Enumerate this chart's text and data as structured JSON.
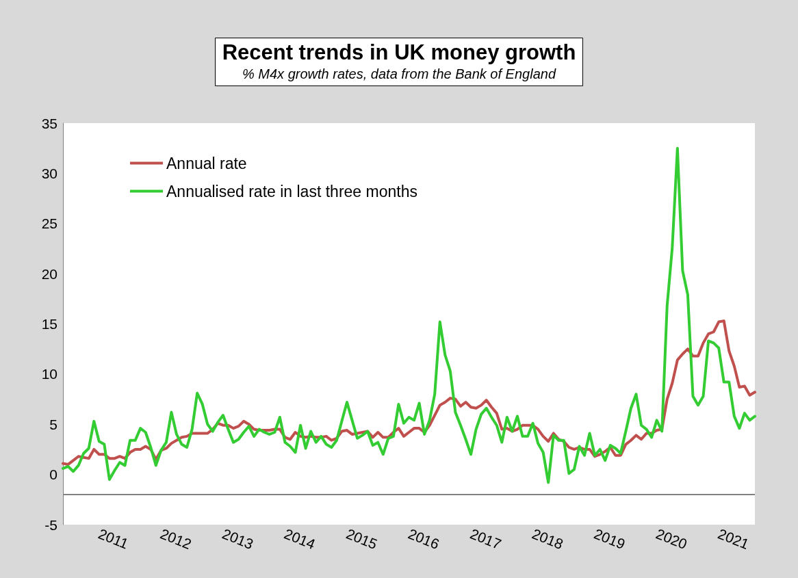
{
  "chart_data": {
    "type": "line",
    "title": "Recent trends in UK money growth",
    "subtitle": "% M4x growth rates, data from the Bank of England",
    "categories": [
      null,
      null,
      null,
      null,
      null,
      null,
      null,
      "2011",
      null,
      null,
      null,
      null,
      null,
      null,
      null,
      null,
      null,
      null,
      null,
      "2012",
      null,
      null,
      null,
      null,
      null,
      null,
      null,
      null,
      null,
      null,
      null,
      "2013",
      null,
      null,
      null,
      null,
      null,
      null,
      null,
      null,
      null,
      null,
      null,
      "2014",
      null,
      null,
      null,
      null,
      null,
      null,
      null,
      null,
      null,
      null,
      null,
      "2015",
      null,
      null,
      null,
      null,
      null,
      null,
      null,
      null,
      null,
      null,
      null,
      "2016",
      null,
      null,
      null,
      null,
      null,
      null,
      null,
      null,
      null,
      null,
      null,
      "2017",
      null,
      null,
      null,
      null,
      null,
      null,
      null,
      null,
      null,
      null,
      null,
      "2018",
      null,
      null,
      null,
      null,
      null,
      null,
      null,
      null,
      null,
      null,
      null,
      "2019",
      null,
      null,
      null,
      null,
      null,
      null,
      null,
      null,
      null,
      null,
      null,
      "2020",
      null,
      null,
      null,
      null,
      null,
      null,
      null,
      null,
      null,
      null,
      null,
      "2021",
      null,
      null,
      null,
      null,
      null,
      null,
      null
    ],
    "series": [
      {
        "name": "Annual rate",
        "color": "#c0504d",
        "values": [
          1.1,
          1.0,
          1.4,
          1.8,
          1.7,
          1.6,
          2.5,
          2.0,
          2.0,
          1.6,
          1.6,
          1.8,
          1.6,
          2.2,
          2.5,
          2.5,
          2.8,
          2.5,
          1.5,
          2.4,
          2.6,
          3.1,
          3.4,
          3.7,
          3.8,
          4.1,
          4.1,
          4.1,
          4.1,
          4.5,
          5.1,
          4.9,
          4.9,
          4.6,
          4.8,
          5.3,
          5.0,
          4.5,
          4.4,
          4.4,
          4.4,
          4.5,
          4.5,
          3.7,
          3.5,
          4.2,
          3.8,
          3.7,
          3.8,
          3.7,
          3.7,
          3.8,
          3.4,
          3.6,
          4.3,
          4.4,
          4.0,
          4.1,
          4.2,
          4.3,
          3.7,
          4.2,
          3.7,
          3.7,
          4.2,
          4.6,
          3.8,
          4.2,
          4.6,
          4.6,
          4.2,
          4.9,
          5.9,
          6.9,
          7.2,
          7.6,
          7.5,
          6.8,
          7.2,
          6.7,
          6.6,
          6.9,
          7.4,
          6.7,
          6.1,
          4.5,
          4.6,
          4.3,
          4.5,
          4.9,
          4.9,
          4.9,
          4.5,
          3.8,
          3.3,
          4.1,
          3.5,
          3.3,
          2.7,
          2.5,
          2.7,
          2.5,
          2.5,
          1.8,
          2.0,
          2.3,
          2.7,
          1.9,
          1.9,
          3.0,
          3.4,
          3.9,
          3.5,
          4.1,
          4.1,
          4.4,
          4.5,
          7.5,
          9.1,
          11.4,
          12.0,
          12.5,
          11.8,
          11.8,
          13.1,
          14.0,
          14.2,
          15.2,
          15.3,
          12.3,
          10.8,
          8.7,
          8.8,
          7.9,
          8.2
        ]
      },
      {
        "name": "Annualised rate in last three months",
        "color": "#33cc33",
        "values": [
          0.6,
          0.8,
          0.3,
          0.9,
          2.1,
          2.6,
          5.3,
          3.3,
          3.0,
          -0.5,
          0.4,
          1.2,
          0.9,
          3.4,
          3.4,
          4.6,
          4.2,
          2.7,
          0.9,
          2.4,
          3.2,
          6.2,
          4.0,
          3.0,
          2.7,
          4.5,
          8.1,
          7.0,
          5.0,
          4.3,
          5.2,
          5.9,
          4.5,
          3.2,
          3.5,
          4.2,
          4.8,
          3.8,
          4.5,
          4.2,
          4.0,
          4.2,
          5.7,
          3.2,
          2.8,
          2.2,
          4.9,
          2.6,
          4.3,
          3.2,
          3.8,
          3.0,
          2.7,
          3.4,
          5.3,
          7.2,
          5.4,
          3.6,
          3.9,
          4.3,
          2.9,
          3.2,
          2.0,
          3.6,
          3.8,
          7.0,
          5.1,
          5.7,
          5.4,
          7.1,
          4.0,
          5.4,
          8.0,
          15.2,
          11.9,
          10.3,
          6.2,
          4.9,
          3.5,
          2.0,
          4.5,
          6.0,
          6.6,
          5.7,
          4.9,
          3.2,
          5.7,
          4.3,
          5.8,
          3.8,
          3.8,
          5.1,
          3.1,
          2.2,
          -0.8,
          3.9,
          3.4,
          3.4,
          0.1,
          0.5,
          2.8,
          1.9,
          4.1,
          1.9,
          2.5,
          1.4,
          2.9,
          2.6,
          2.1,
          4.3,
          6.6,
          8.0,
          4.9,
          4.5,
          3.7,
          5.4,
          4.3,
          16.8,
          22.6,
          32.5,
          20.3,
          17.9,
          7.8,
          6.9,
          7.8,
          13.3,
          13.1,
          12.6,
          9.2,
          9.2,
          5.8,
          4.6,
          6.1,
          5.4,
          5.8
        ]
      }
    ],
    "ylim": [
      -5,
      35
    ],
    "yticks": [
      -5,
      0,
      5,
      10,
      15,
      20,
      25,
      30,
      35
    ],
    "ref_lines": [
      {
        "axis": "y",
        "value": -2,
        "color": "#808080"
      }
    ],
    "legend": "top left",
    "marker": "none",
    "line_style": "solid"
  }
}
